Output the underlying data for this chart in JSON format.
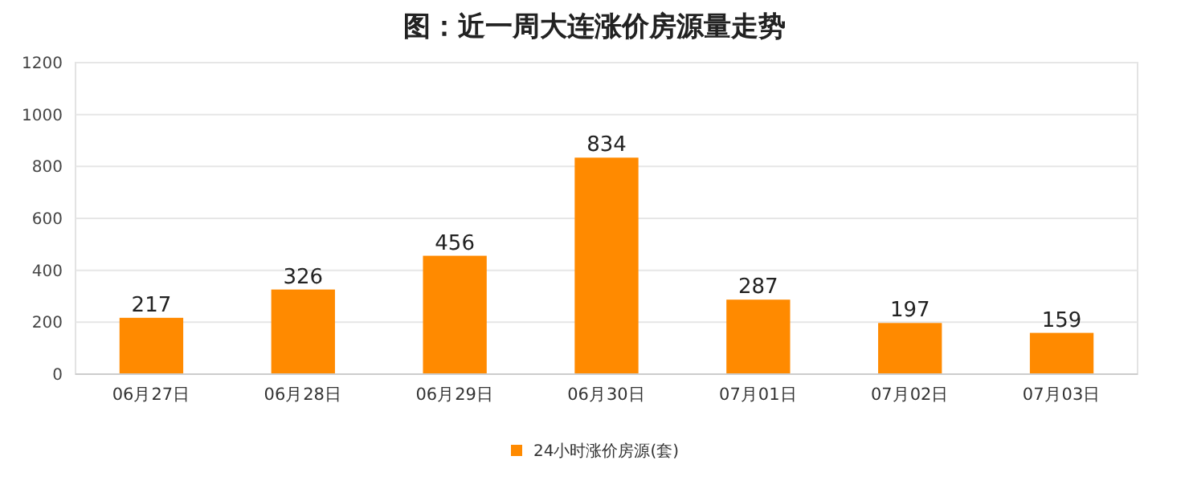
{
  "chart_data": {
    "type": "bar",
    "title": "图：近一周大连涨价房源量走势",
    "categories": [
      "06月27日",
      "06月28日",
      "06月29日",
      "06月30日",
      "07月01日",
      "07月02日",
      "07月03日"
    ],
    "series": [
      {
        "name": "24小时涨价房源(套)",
        "color": "#ff8a00",
        "values": [
          217,
          326,
          456,
          834,
          287,
          197,
          159
        ]
      }
    ],
    "ylim": [
      0,
      1200
    ],
    "yticks": [
      0,
      200,
      400,
      600,
      800,
      1000,
      1200
    ],
    "grid": "y",
    "legend": "bottom",
    "data_labels": true
  }
}
